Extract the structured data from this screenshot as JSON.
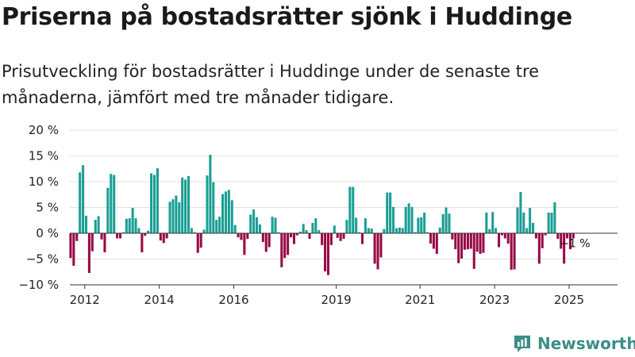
{
  "title": "Priserna på bostadsrätter sjönk i Huddinge",
  "subtitle": "Prisutveckling för bostadsrätter i Huddinge under de senaste tre månaderna, jämfört med tre månader tidigare.",
  "brand": "Newsworthy",
  "colors": {
    "positive": "#1a9e94",
    "negative": "#980a45",
    "grid": "#e2e2e2",
    "axis": "#333333",
    "brand": "#3a8f86"
  },
  "chart_data": {
    "type": "bar",
    "title": "Priserna på bostadsrätter sjönk i Huddinge",
    "xlabel": "",
    "ylabel": "",
    "ylim": [
      -10,
      20
    ],
    "y_ticks": [
      20,
      15,
      10,
      5,
      0,
      -5,
      -10
    ],
    "y_tick_labels": [
      "20 %",
      "15 %",
      "10 %",
      "5 %",
      "0 %",
      "−5 %",
      "−10 %"
    ],
    "x_tick_labels": [
      "2012",
      "2014",
      "2016",
      "2019",
      "2021",
      "2023",
      "2025"
    ],
    "x_tick_positions": [
      2012.0,
      2014.0,
      2016.0,
      2018.75,
      2021.0,
      2023.0,
      2025.0
    ],
    "x_range": [
      2011.6,
      2026.3
    ],
    "bar_x_start": 2011.62,
    "bar_x_step": 0.0833,
    "values": [
      -4.8,
      -6.3,
      -1.5,
      11.8,
      13.2,
      3.4,
      -7.7,
      -3.5,
      2.6,
      3.3,
      -1.2,
      -3.7,
      8.8,
      11.5,
      11.3,
      -1.0,
      -1.0,
      0.2,
      2.8,
      2.9,
      4.9,
      2.9,
      1.0,
      -3.7,
      -0.5,
      0.5,
      11.6,
      11.3,
      12.6,
      -1.4,
      -1.9,
      -1.0,
      6.1,
      6.6,
      7.3,
      6.0,
      10.8,
      10.4,
      11.1,
      1.0,
      0.2,
      -3.8,
      -2.8,
      0.7,
      11.2,
      15.2,
      9.9,
      2.6,
      3.2,
      7.6,
      8.1,
      8.4,
      6.4,
      1.6,
      -0.8,
      -1.3,
      -4.2,
      -1.1,
      3.6,
      4.6,
      3.1,
      1.7,
      -1.7,
      -3.6,
      -2.7,
      3.2,
      3.0,
      0.2,
      -6.6,
      -4.8,
      -4.2,
      -0.8,
      -2.1,
      -0.4,
      0.3,
      1.8,
      0.6,
      -1.1,
      2.0,
      2.9,
      0.6,
      -2.3,
      -7.4,
      -8.1,
      -2.3,
      1.5,
      -0.9,
      -1.5,
      -1.1,
      2.6,
      9.0,
      9.0,
      3.0,
      0.2,
      -2.1,
      2.9,
      1.0,
      0.9,
      -5.9,
      -7.0,
      -4.7,
      0.8,
      7.9,
      7.9,
      5.1,
      1.0,
      1.1,
      1.0,
      5.1,
      5.8,
      5.1,
      0.2,
      3.0,
      3.1,
      4.0,
      0.2,
      -2.0,
      -3.0,
      -4.0,
      1.1,
      3.7,
      5.0,
      3.8,
      -1.2,
      -3.1,
      -5.8,
      -4.9,
      -3.2,
      -3.1,
      -3.0,
      -6.9,
      -3.6,
      -4.0,
      -3.8,
      4.0,
      0.8,
      4.1,
      1.0,
      -2.7,
      -0.4,
      -1.0,
      -2.0,
      -7.1,
      -7.0,
      5.0,
      8.0,
      4.0,
      1.0,
      4.9,
      2.0,
      -1.0,
      -5.9,
      -2.9,
      -0.4,
      4.0,
      4.0,
      6.0,
      -1.1,
      -3.0,
      -5.9,
      -1.0,
      -3.1,
      -1.0
    ],
    "annotation": "−1 %"
  }
}
